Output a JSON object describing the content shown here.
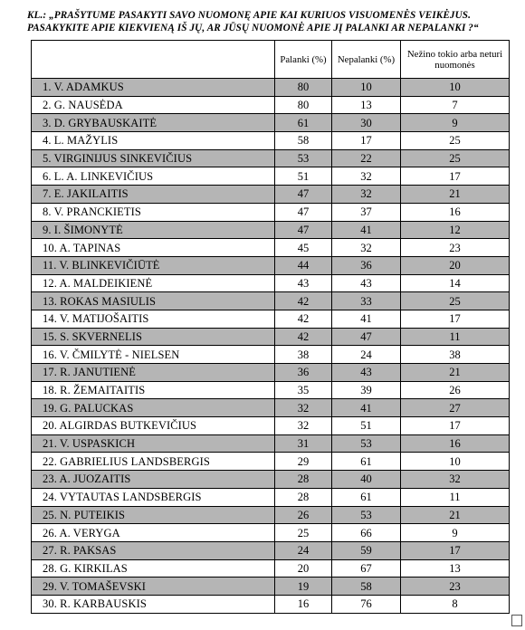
{
  "question": {
    "line1": "KL.: „PRAŠYTUME PASAKYTI SAVO NUOMONĘ APIE KAI KURIUOS VISUOMENĖS VEIKĖJUS.",
    "line2": "PASAKYKITE APIE KIEKVIENĄ IŠ JŲ, AR JŪSŲ NUOMONĖ  APIE JĮ PALANKI AR NEPALANKI ?“"
  },
  "table": {
    "headers": {
      "name": "",
      "palanki": "Palanki (%)",
      "nepalanki": "Nepalanki (%)",
      "nezino": "Nežino tokio arba neturi nuomonės"
    },
    "rows": [
      {
        "name": "1. V. ADAMKUS",
        "p": "80",
        "n": "10",
        "z": "10"
      },
      {
        "name": "2. G. NAUSĖDA",
        "p": "80",
        "n": "13",
        "z": "7"
      },
      {
        "name": "3. D. GRYBAUSKAITĖ",
        "p": "61",
        "n": "30",
        "z": "9"
      },
      {
        "name": "4. L. MAŽYLIS",
        "p": "58",
        "n": "17",
        "z": "25"
      },
      {
        "name": "5. VIRGINIJUS SINKEVIČIUS",
        "p": "53",
        "n": "22",
        "z": "25"
      },
      {
        "name": "6. L. A. LINKEVIČIUS",
        "p": "51",
        "n": "32",
        "z": "17"
      },
      {
        "name": "7. E. JAKILAITIS",
        "p": "47",
        "n": "32",
        "z": "21"
      },
      {
        "name": "8. V. PRANCKIETIS",
        "p": "47",
        "n": "37",
        "z": "16"
      },
      {
        "name": "9. I. ŠIMONYTĖ",
        "p": "47",
        "n": "41",
        "z": "12"
      },
      {
        "name": "10. A. TAPINAS",
        "p": "45",
        "n": "32",
        "z": "23"
      },
      {
        "name": "11. V. BLINKEVIČIŪTĖ",
        "p": "44",
        "n": "36",
        "z": "20"
      },
      {
        "name": "12. A. MALDEIKIENĖ",
        "p": "43",
        "n": "43",
        "z": "14"
      },
      {
        "name": "13. ROKAS MASIULIS",
        "p": "42",
        "n": "33",
        "z": "25"
      },
      {
        "name": "14. V. MATIJOŠAITIS",
        "p": "42",
        "n": "41",
        "z": "17"
      },
      {
        "name": "15. S. SKVERNELIS",
        "p": "42",
        "n": "47",
        "z": "11"
      },
      {
        "name": "16. V. ČMILYTĖ - NIELSEN",
        "p": "38",
        "n": "24",
        "z": "38"
      },
      {
        "name": "17. R. JANUTIENĖ",
        "p": "36",
        "n": "43",
        "z": "21"
      },
      {
        "name": "18. R. ŽEMAITAITIS",
        "p": "35",
        "n": "39",
        "z": "26"
      },
      {
        "name": "19. G. PALUCKAS",
        "p": "32",
        "n": "41",
        "z": "27"
      },
      {
        "name": "20. ALGIRDAS BUTKEVIČIUS",
        "p": "32",
        "n": "51",
        "z": "17"
      },
      {
        "name": "21. V. USPASKICH",
        "p": "31",
        "n": "53",
        "z": "16"
      },
      {
        "name": "22. GABRIELIUS LANDSBERGIS",
        "p": "29",
        "n": "61",
        "z": "10"
      },
      {
        "name": "23. A. JUOZAITIS",
        "p": "28",
        "n": "40",
        "z": "32"
      },
      {
        "name": "24. VYTAUTAS LANDSBERGIS",
        "p": "28",
        "n": "61",
        "z": "11"
      },
      {
        "name": "25. N. PUTEIKIS",
        "p": "26",
        "n": "53",
        "z": "21"
      },
      {
        "name": "26. A. VERYGA",
        "p": "25",
        "n": "66",
        "z": "9"
      },
      {
        "name": "27. R. PAKSAS",
        "p": "24",
        "n": "59",
        "z": "17"
      },
      {
        "name": "28. G. KIRKILAS",
        "p": "20",
        "n": "67",
        "z": "13"
      },
      {
        "name": "29. V. TOMAŠEVSKI",
        "p": "19",
        "n": "58",
        "z": "23"
      },
      {
        "name": "30. R. KARBAUSKIS",
        "p": "16",
        "n": "76",
        "z": "8"
      }
    ]
  }
}
